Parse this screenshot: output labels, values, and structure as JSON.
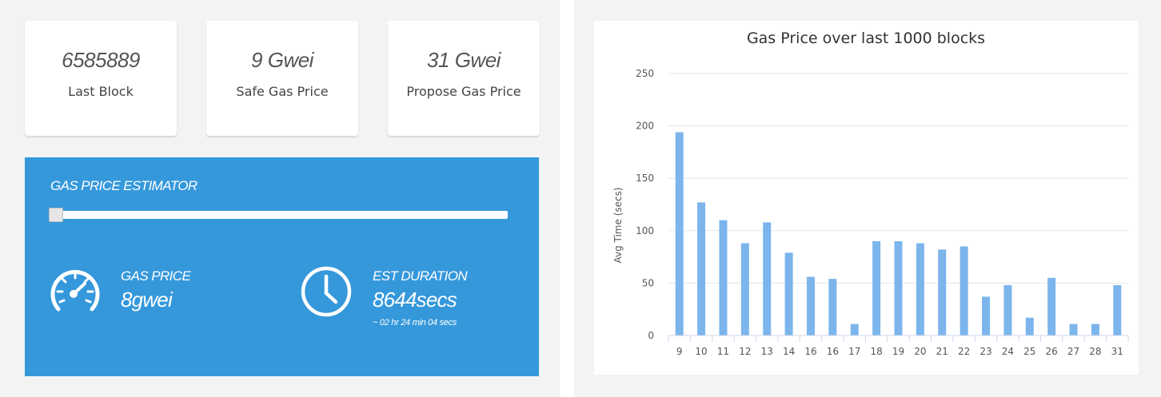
{
  "stats": [
    {
      "value": "6585889",
      "label": "Last Block"
    },
    {
      "value": "9 Gwei",
      "label": "Safe Gas Price"
    },
    {
      "value": "31 Gwei",
      "label": "Propose Gas Price"
    }
  ],
  "estimator": {
    "title": "GAS PRICE ESTIMATOR",
    "slider_value": 0,
    "gas_price": {
      "label": "GAS PRICE",
      "value": "8gwei",
      "icon": "speedometer-icon"
    },
    "duration": {
      "label": "EST DURATION",
      "value": "8644secs",
      "sub": "~ 02 hr 24 min 04 secs",
      "icon": "clock-icon"
    },
    "colors": {
      "background": "#3598db",
      "text": "#ffffff"
    }
  },
  "chart_data": {
    "type": "bar",
    "title": "Gas Price over last 1000 blocks",
    "ylabel": "Avg Time (secs)",
    "xlabel": "",
    "ylim": [
      0,
      250
    ],
    "yticks": [
      0,
      50,
      100,
      150,
      200,
      250
    ],
    "categories": [
      "9",
      "10",
      "11",
      "12",
      "13",
      "14",
      "16",
      "16",
      "17",
      "18",
      "19",
      "20",
      "21",
      "22",
      "23",
      "24",
      "25",
      "26",
      "27",
      "28",
      "31"
    ],
    "values": [
      194,
      127,
      110,
      88,
      108,
      79,
      56,
      54,
      11,
      90,
      90,
      88,
      82,
      85,
      37,
      48,
      17,
      55,
      11,
      11,
      48
    ],
    "bar_color": "#7cb5ec",
    "grid": true
  }
}
